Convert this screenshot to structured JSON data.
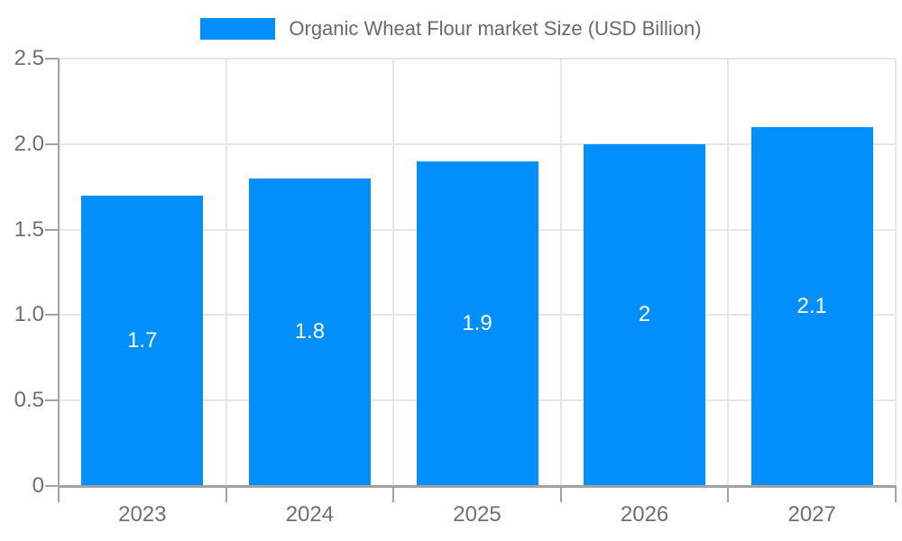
{
  "chart_data": {
    "type": "bar",
    "title": "Organic Wheat Flour market Size (USD Billion)",
    "categories": [
      "2023",
      "2024",
      "2025",
      "2026",
      "2027"
    ],
    "series": [
      {
        "name": "Organic Wheat Flour market Size (USD Billion)",
        "values": [
          1.7,
          1.8,
          1.9,
          2,
          2.1
        ]
      }
    ],
    "value_labels": [
      "1.7",
      "1.8",
      "1.9",
      "2",
      "2.1"
    ],
    "xlabel": "",
    "ylabel": "",
    "ylim": [
      0,
      2.5
    ],
    "y_tick_step": 0.5,
    "y_tick_labels": [
      "0",
      "0.5",
      "1.0",
      "1.5",
      "2.0",
      "2.5"
    ],
    "grid": true,
    "legend_position": "top",
    "colors": {
      "bar": "#008FFB",
      "grid": "#e6e6e6",
      "axis": "#a2a2a2",
      "tick_label": "#6f6f6f",
      "title": "#6a6a6a",
      "value_label": "#ffffff",
      "background": "#ffffff"
    }
  }
}
